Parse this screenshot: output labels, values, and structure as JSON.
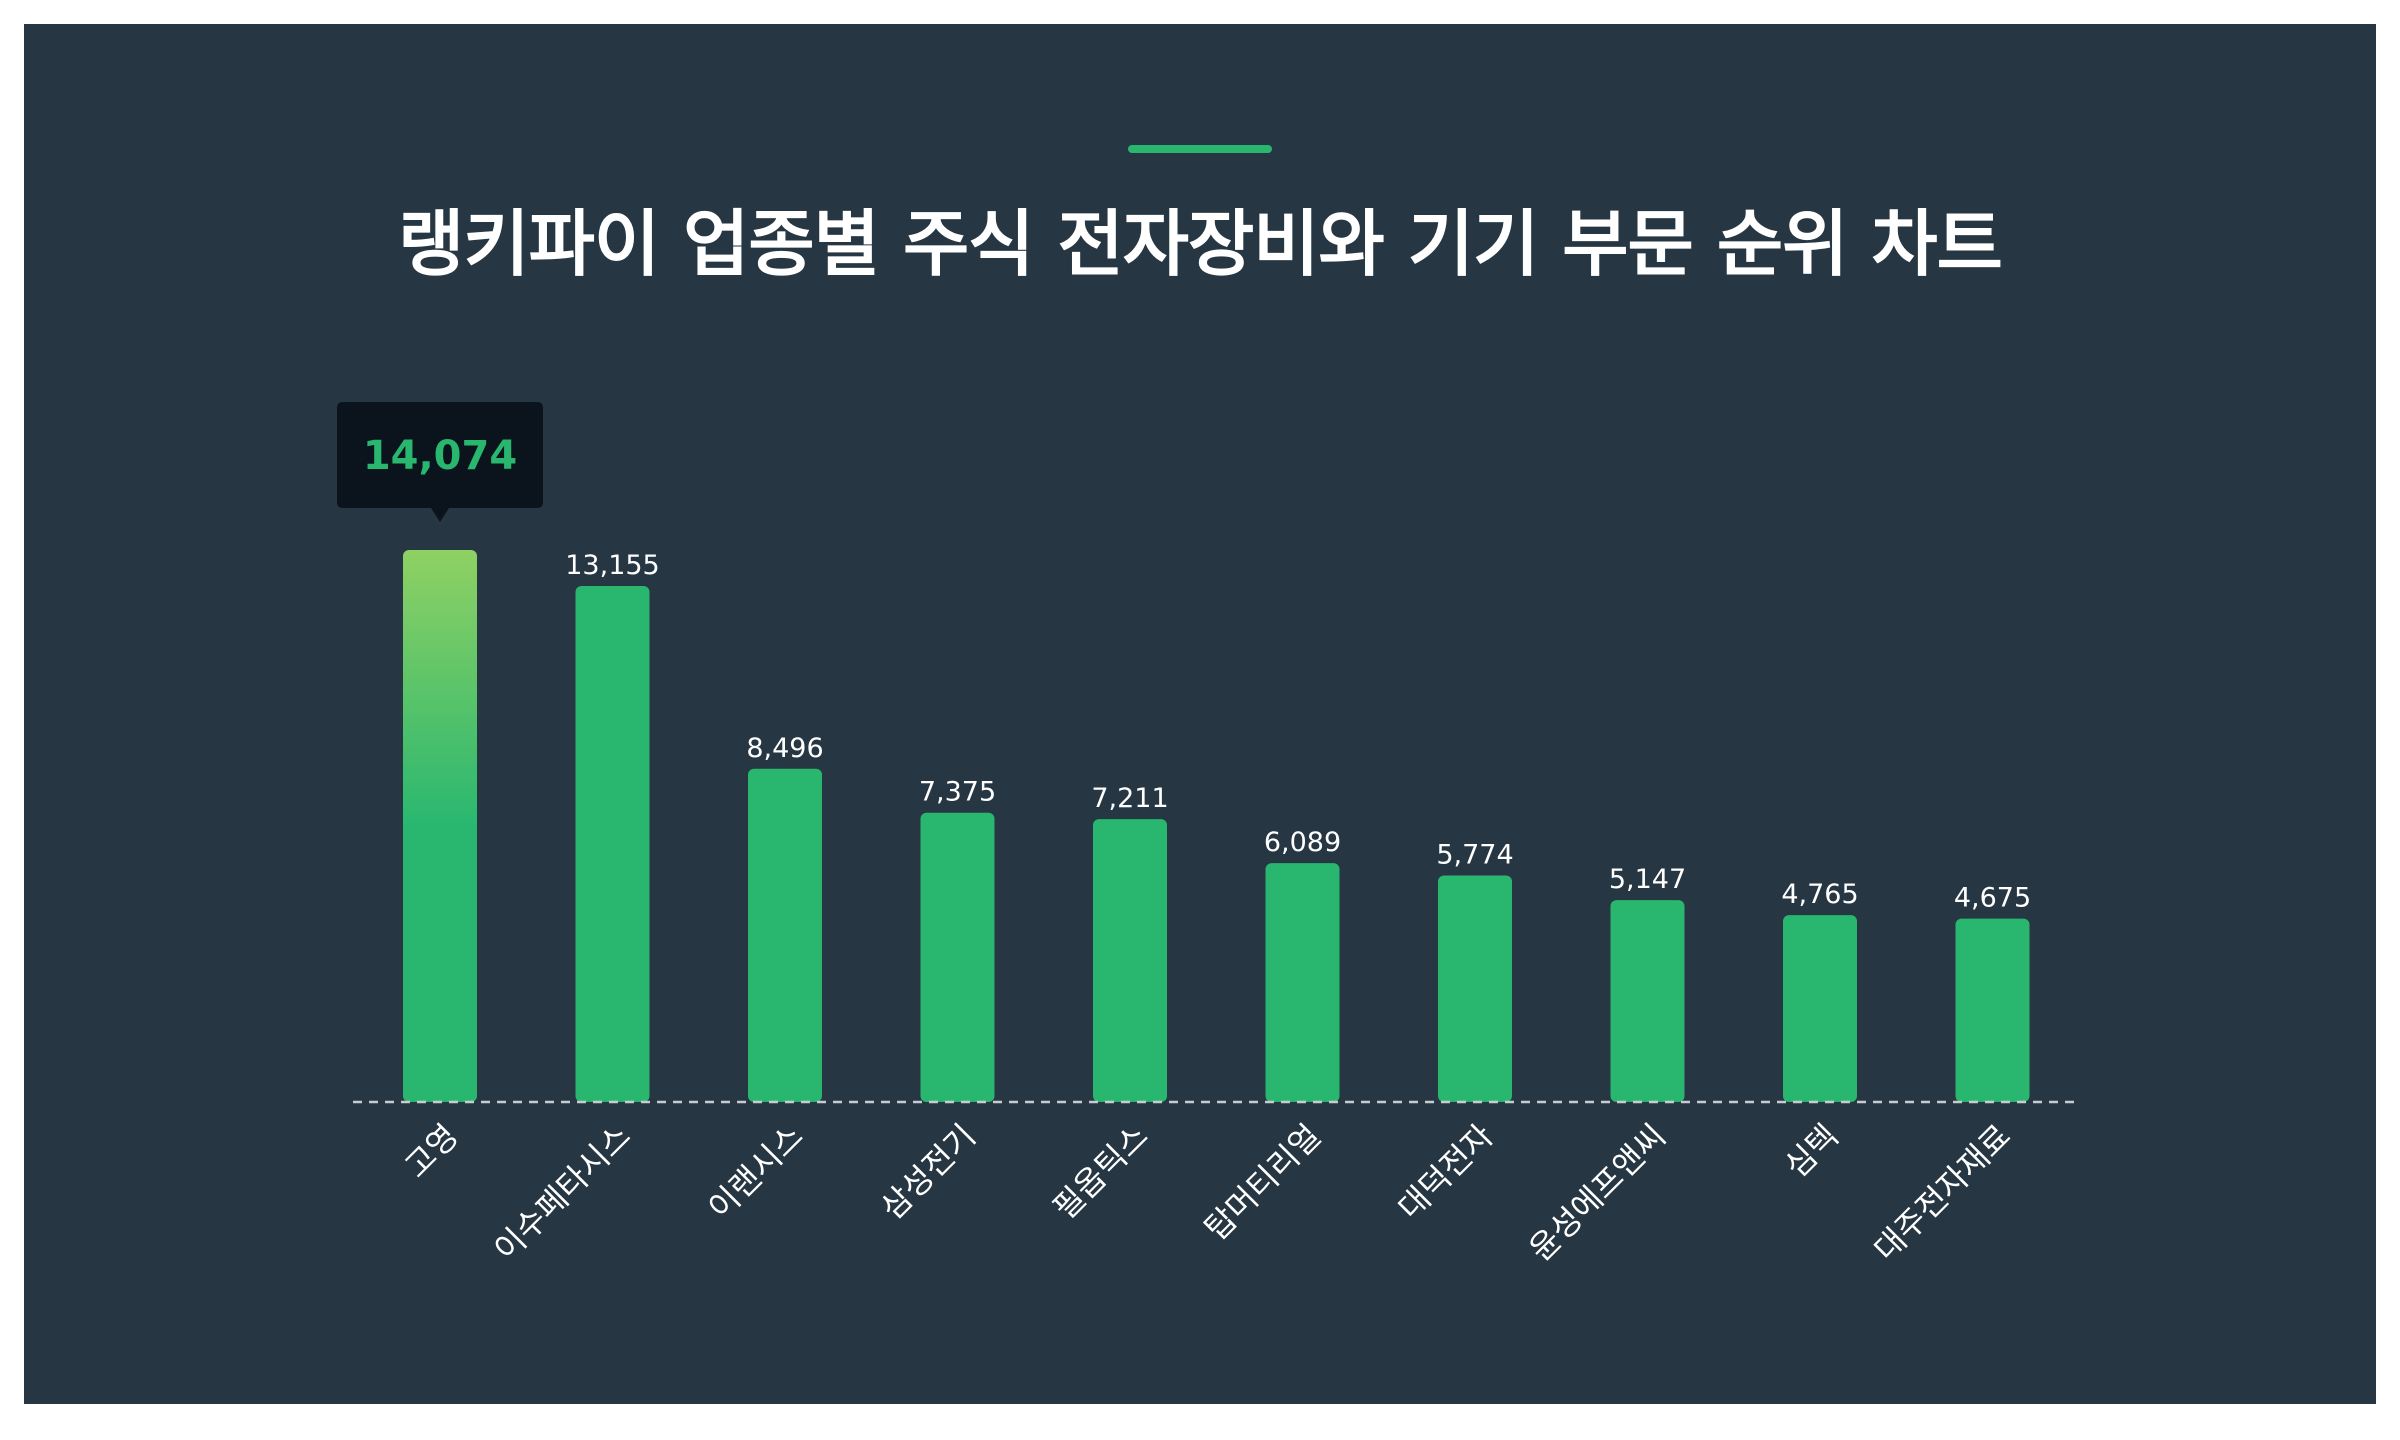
{
  "title": "랭키파이 업종별 주식 전자장비와 기기 부문 순위 차트",
  "colors": {
    "background": "#263642",
    "bar": "#29b770",
    "bar_highlight_top": "#8fd163",
    "accent": "#29b770",
    "tooltip_bg": "#0b141c",
    "tooltip_text": "#29b770",
    "label_text": "#ffffff",
    "baseline": "#c7ccd1"
  },
  "chart_data": {
    "type": "bar",
    "title": "랭키파이 업종별 주식 전자장비와 기기 부문 순위 차트",
    "categories": [
      "고영",
      "이수페타시스",
      "이랜시스",
      "삼성전기",
      "필옵틱스",
      "탑머티리얼",
      "대덕전자",
      "윤성에프앤씨",
      "심텍",
      "대주전자재료"
    ],
    "values": [
      14074,
      13155,
      8496,
      7375,
      7211,
      6089,
      5774,
      5147,
      4765,
      4675
    ],
    "value_labels": [
      "14,074",
      "13,155",
      "8,496",
      "7,375",
      "7,211",
      "6,089",
      "5,774",
      "5,147",
      "4,765",
      "4,675"
    ],
    "highlight_index": 0,
    "xlabel": "",
    "ylabel": "",
    "ylim": [
      0,
      14074
    ],
    "grid": false,
    "legend": "none"
  }
}
